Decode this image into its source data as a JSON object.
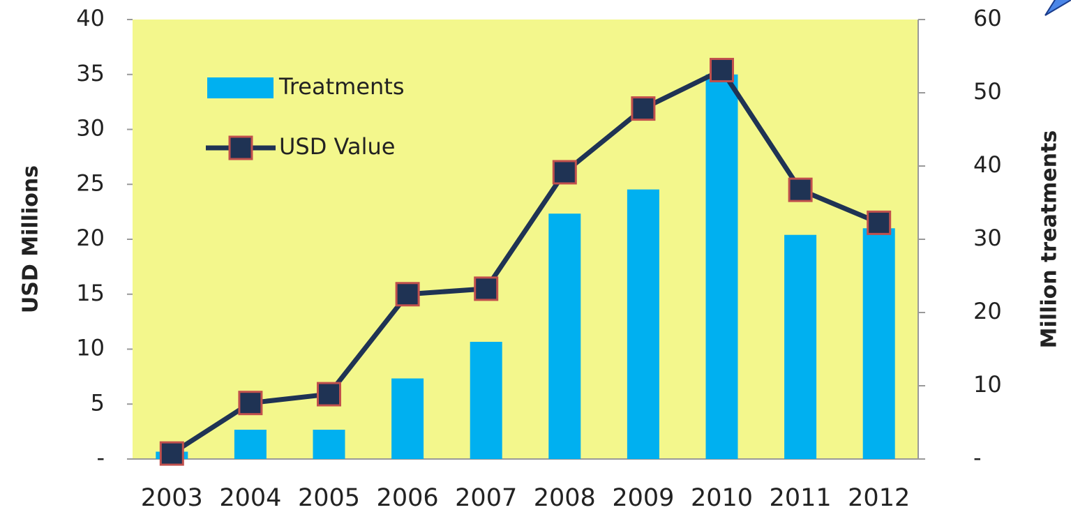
{
  "chart_data": {
    "type": "bar_line",
    "categories": [
      "2003",
      "2004",
      "2005",
      "2006",
      "2007",
      "2008",
      "2009",
      "2010",
      "2011",
      "2012"
    ],
    "series": [
      {
        "name": "Treatments",
        "type": "bar",
        "axis": "y2",
        "color": "#00b0f0",
        "values": [
          1,
          4,
          4,
          11,
          16,
          33.5,
          36.8,
          52.5,
          30.6,
          31.5
        ]
      },
      {
        "name": "USD Value",
        "type": "line",
        "axis": "y",
        "color": "#1f3354",
        "marker_edge_color": "#c0504d",
        "values": [
          0.5,
          5.1,
          5.9,
          15.0,
          15.5,
          26.1,
          31.9,
          35.4,
          24.5,
          21.5
        ]
      }
    ],
    "ylabel": "USD Millions",
    "y2label": "Million treatments",
    "ylim": [
      0,
      40
    ],
    "yticks": [
      {
        "value": 0,
        "label": "-"
      },
      5,
      10,
      15,
      20,
      25,
      30,
      35,
      40
    ],
    "y2lim": [
      0,
      60
    ],
    "y2ticks": [
      {
        "value": 0,
        "label": "-"
      },
      10,
      20,
      30,
      40,
      50,
      60
    ],
    "legend": "upper left",
    "plot_background": "#f3f78c"
  }
}
